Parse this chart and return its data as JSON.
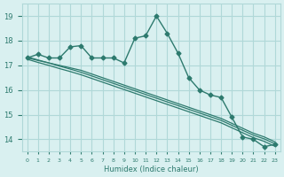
{
  "xlabel": "Humidex (Indice chaleur)",
  "ylabel": "",
  "bg_color": "#d9f0f0",
  "grid_color": "#b0d8d8",
  "line_color": "#2d7a6e",
  "x": [
    0,
    1,
    2,
    3,
    4,
    5,
    6,
    7,
    8,
    9,
    10,
    11,
    12,
    13,
    14,
    15,
    16,
    17,
    18,
    19,
    20,
    21,
    22,
    23
  ],
  "y_main": [
    17.3,
    17.45,
    17.3,
    17.3,
    17.75,
    17.8,
    17.3,
    17.3,
    17.3,
    17.1,
    18.1,
    18.2,
    19.0,
    18.3,
    17.5,
    16.5,
    16.0,
    15.8,
    15.7,
    14.9,
    14.1,
    14.0,
    13.7,
    13.8
  ],
  "y_reg1": [
    17.3,
    17.2,
    17.1,
    17.0,
    16.9,
    16.8,
    16.65,
    16.5,
    16.35,
    16.2,
    16.05,
    15.9,
    15.75,
    15.6,
    15.45,
    15.3,
    15.15,
    15.0,
    14.85,
    14.65,
    14.45,
    14.25,
    14.1,
    13.9
  ],
  "y_reg2": [
    17.35,
    17.22,
    17.1,
    16.97,
    16.85,
    16.72,
    16.57,
    16.42,
    16.27,
    16.12,
    15.97,
    15.82,
    15.67,
    15.52,
    15.37,
    15.22,
    15.07,
    14.92,
    14.77,
    14.57,
    14.37,
    14.17,
    14.02,
    13.82
  ],
  "y_reg3": [
    17.25,
    17.12,
    17.0,
    16.87,
    16.75,
    16.62,
    16.47,
    16.32,
    16.17,
    16.02,
    15.87,
    15.72,
    15.57,
    15.42,
    15.27,
    15.12,
    14.97,
    14.82,
    14.67,
    14.47,
    14.27,
    14.07,
    13.92,
    13.72
  ],
  "ylim": [
    13.5,
    19.5
  ],
  "yticks": [
    14,
    15,
    16,
    17,
    18,
    19
  ],
  "xlim": [
    -0.5,
    23.5
  ]
}
